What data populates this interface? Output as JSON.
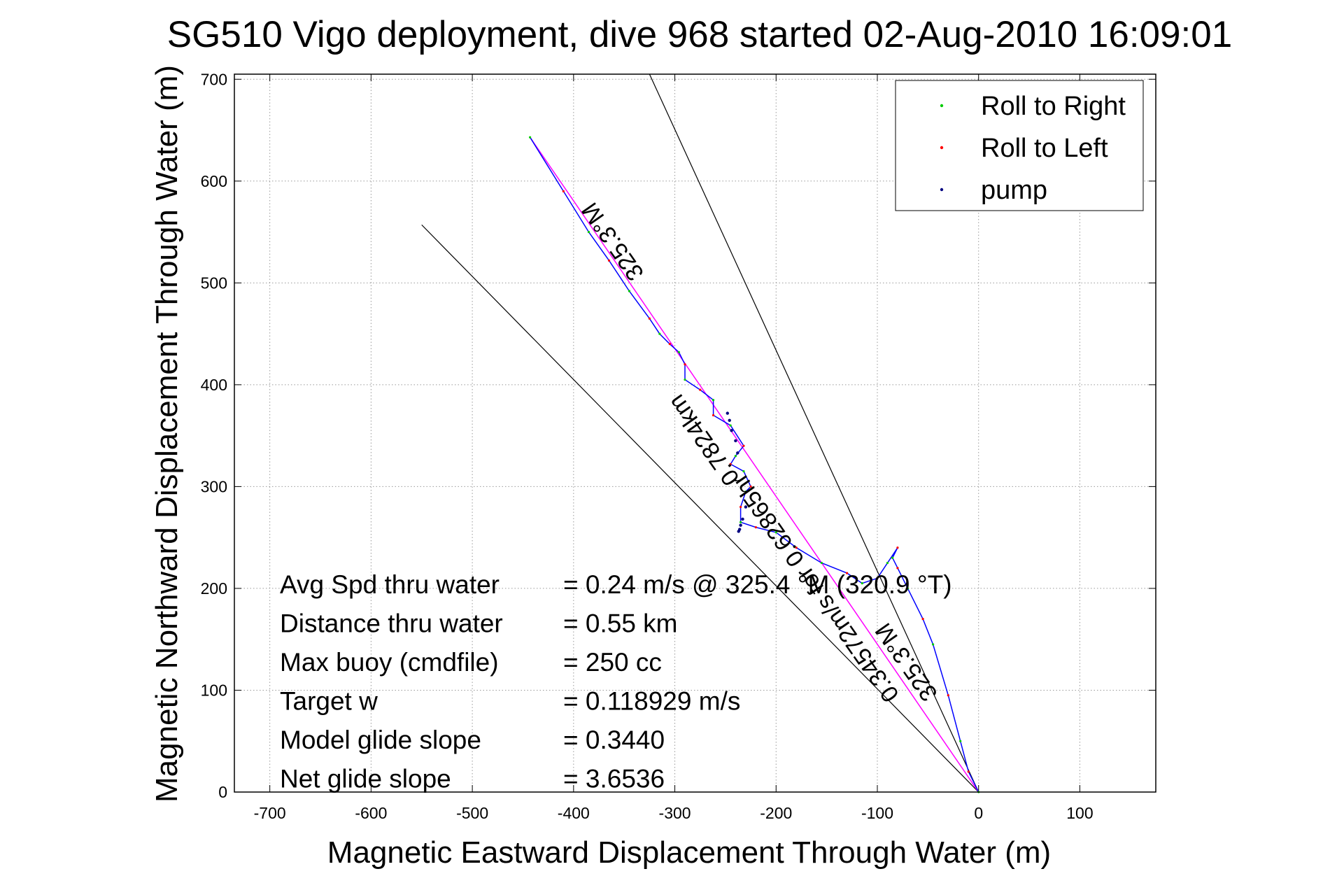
{
  "chart_data": {
    "type": "line",
    "title": "SG510 Vigo deployment, dive 968 started 02-Aug-2010 16:09:01",
    "xlabel": "Magnetic Eastward Displacement Through Water (m)",
    "ylabel": "Magnetic Northward Displacement Through Water (m)",
    "xlim": [
      -735,
      175
    ],
    "ylim": [
      0,
      705
    ],
    "xticks": [
      -700,
      -600,
      -500,
      -400,
      -300,
      -200,
      -100,
      0,
      100
    ],
    "yticks": [
      0,
      100,
      200,
      300,
      400,
      500,
      600,
      700
    ],
    "grid": true,
    "legend": {
      "placement": "top-right",
      "entries": [
        {
          "label": "Roll to Right",
          "color": "#00cc00"
        },
        {
          "label": "Roll to Left",
          "color": "#ff0000"
        },
        {
          "label": "pump",
          "color": "#000080"
        }
      ]
    },
    "reference_lines": [
      {
        "x": [
          0,
          -325
        ],
        "y": [
          0,
          705
        ],
        "color": "#000000"
      },
      {
        "x": [
          0,
          -550
        ],
        "y": [
          0,
          557
        ],
        "color": "#000000"
      }
    ],
    "heading_line": {
      "x": [
        0,
        -443
      ],
      "y": [
        0,
        643
      ],
      "color": "#ff00ff"
    },
    "track": {
      "color": "#0000ff",
      "x": [
        0,
        -10,
        -18,
        -30,
        -45,
        -55,
        -70,
        -80,
        -85,
        -80,
        -90,
        -100,
        -115,
        -130,
        -155,
        -180,
        -200,
        -220,
        -235,
        -235,
        -230,
        -225,
        -232,
        -245,
        -240,
        -232,
        -245,
        -262,
        -262,
        -275,
        -290,
        -290,
        -296,
        -305,
        -315,
        -325,
        -345,
        -365,
        -385,
        -410,
        -443
      ],
      "y": [
        0,
        20,
        50,
        95,
        145,
        170,
        200,
        220,
        230,
        240,
        225,
        210,
        205,
        215,
        225,
        240,
        255,
        260,
        265,
        280,
        295,
        300,
        315,
        322,
        330,
        340,
        360,
        370,
        385,
        395,
        405,
        420,
        432,
        440,
        450,
        465,
        492,
        522,
        550,
        590,
        643
      ]
    },
    "pump_points": {
      "color": "#000080",
      "x": [
        -230,
        -233,
        -235,
        -236,
        -237,
        -238,
        -240,
        -244,
        -246,
        -248
      ],
      "y": [
        280,
        268,
        262,
        258,
        256,
        333,
        345,
        355,
        365,
        372
      ]
    },
    "annotations": {
      "heading_label": "325.3°M",
      "distance_label": "0.7824km",
      "time_label": "0.34572m/s for 0.62865hr",
      "near_heading_label": "325.3°M"
    },
    "stats": [
      {
        "label": "Avg Spd thru water",
        "value": "=  0.24 m/s @ 325.4 °M (320.9 °T)"
      },
      {
        "label": "Distance thru water",
        "value": "=  0.55 km"
      },
      {
        "label": "Max buoy (cmdfile)",
        "value": "= 250 cc"
      },
      {
        "label": "Target w",
        "value": "= 0.118929 m/s"
      },
      {
        "label": "Model glide slope",
        "value": "= 0.3440"
      },
      {
        "label": "Net glide slope",
        "value": "= 3.6536"
      }
    ]
  }
}
